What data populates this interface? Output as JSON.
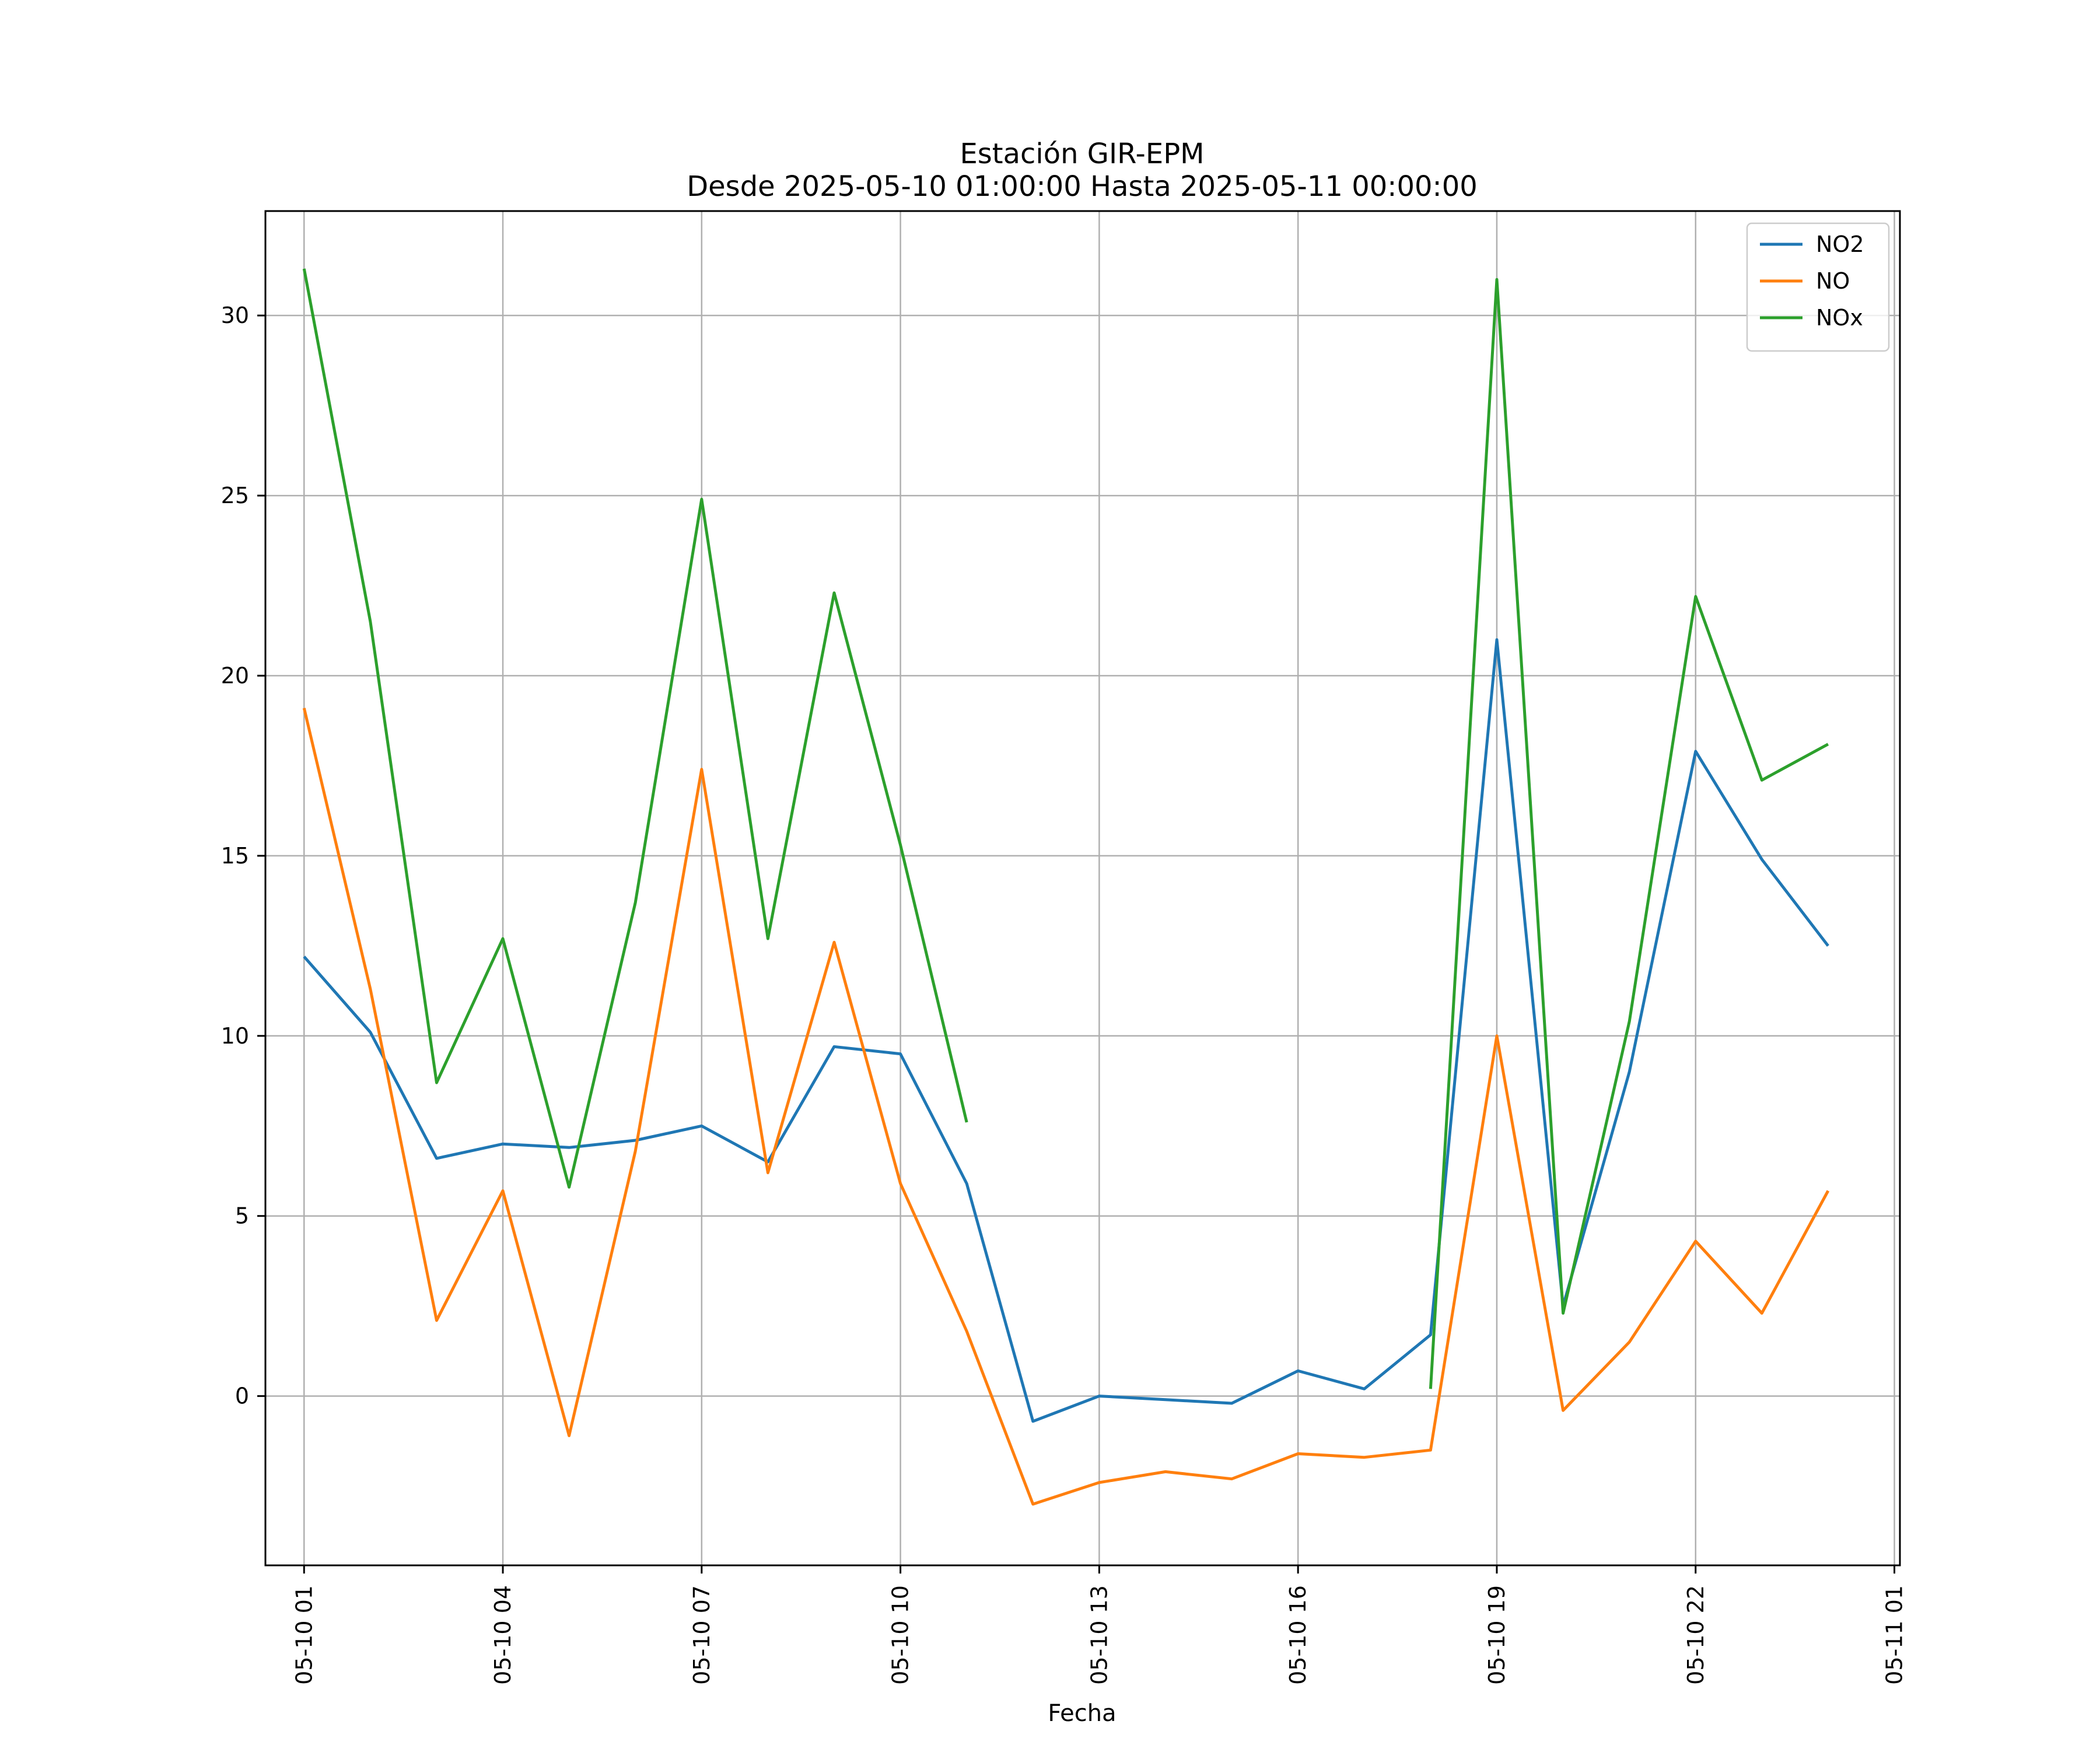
{
  "chart_data": {
    "type": "line",
    "title": "Estación GIR-EPM",
    "subtitle": "Desde 2025-05-10 01:00:00 Hasta 2025-05-11 00:00:00",
    "xlabel": "Fecha",
    "ylabel": "",
    "x": [
      "05-10 01",
      "05-10 02",
      "05-10 03",
      "05-10 04",
      "05-10 05",
      "05-10 06",
      "05-10 07",
      "05-10 08",
      "05-10 09",
      "05-10 10",
      "05-10 11",
      "05-10 12",
      "05-10 13",
      "05-10 14",
      "05-10 15",
      "05-10 16",
      "05-10 17",
      "05-10 18",
      "05-10 19",
      "05-10 20",
      "05-10 21",
      "05-10 22",
      "05-10 23",
      "05-11 00"
    ],
    "xticks": [
      "05-10 01",
      "05-10 04",
      "05-10 07",
      "05-10 10",
      "05-10 13",
      "05-10 16",
      "05-10 19",
      "05-10 22",
      "05-11 01"
    ],
    "xlim": [
      "05-10 00:25",
      "05-11 01:05"
    ],
    "yticks": [
      0,
      5,
      10,
      15,
      20,
      25,
      30
    ],
    "ylim": [
      -4.7,
      32.9
    ],
    "grid": true,
    "legend_position": "top-right",
    "series": [
      {
        "name": "NO2",
        "color": "#1f77b4",
        "values": [
          12.2,
          10.1,
          6.6,
          7.0,
          6.9,
          7.1,
          7.5,
          6.5,
          9.7,
          9.5,
          5.9,
          -0.7,
          0.0,
          -0.1,
          -0.2,
          0.7,
          0.2,
          1.7,
          21.0,
          2.5,
          9.0,
          17.9,
          14.9,
          12.5
        ]
      },
      {
        "name": "NO",
        "color": "#ff7f0e",
        "values": [
          19.1,
          11.3,
          2.1,
          5.7,
          -1.1,
          6.8,
          17.4,
          6.2,
          12.6,
          5.9,
          1.8,
          -3.0,
          -2.4,
          -2.1,
          -2.3,
          -1.6,
          -1.7,
          -1.5,
          10.0,
          -0.4,
          1.5,
          4.3,
          2.3,
          5.7
        ]
      },
      {
        "name": "NOx",
        "color": "#2ca02c",
        "values": [
          31.3,
          21.5,
          8.7,
          12.7,
          5.8,
          13.7,
          24.9,
          12.7,
          22.3,
          15.3,
          7.6,
          null,
          null,
          null,
          null,
          null,
          null,
          0.2,
          31.0,
          2.3,
          10.4,
          22.2,
          17.1,
          18.1
        ]
      }
    ]
  }
}
